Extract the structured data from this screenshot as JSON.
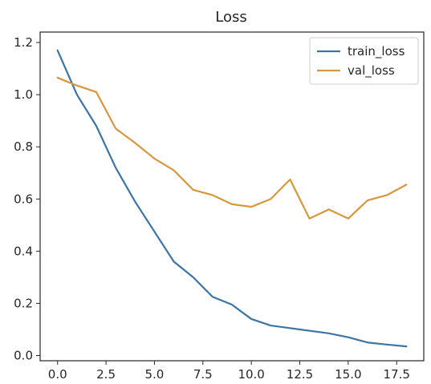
{
  "chart_data": {
    "type": "line",
    "title": "Loss",
    "xlabel": "",
    "ylabel": "",
    "xlim": [
      -0.9,
      18.9
    ],
    "ylim": [
      -0.02,
      1.24
    ],
    "xticks": [
      0.0,
      2.5,
      5.0,
      7.5,
      10.0,
      12.5,
      15.0,
      17.5
    ],
    "xtick_labels": [
      "0.0",
      "2.5",
      "5.0",
      "7.5",
      "10.0",
      "12.5",
      "15.0",
      "17.5"
    ],
    "yticks": [
      0.0,
      0.2,
      0.4,
      0.6,
      0.8,
      1.0,
      1.2
    ],
    "ytick_labels": [
      "0.0",
      "0.2",
      "0.4",
      "0.6",
      "0.8",
      "1.0",
      "1.2"
    ],
    "grid": false,
    "legend": "top-right",
    "x": [
      0,
      1,
      2,
      3,
      4,
      5,
      6,
      7,
      8,
      9,
      10,
      11,
      12,
      13,
      14,
      15,
      16,
      17,
      18
    ],
    "series": [
      {
        "name": "train_loss",
        "color": "#3b75a6",
        "values": [
          1.17,
          1.0,
          0.88,
          0.72,
          0.59,
          0.475,
          0.36,
          0.3,
          0.225,
          0.195,
          0.14,
          0.115,
          0.105,
          0.095,
          0.085,
          0.07,
          0.05,
          0.042,
          0.035
        ]
      },
      {
        "name": "val_loss",
        "color": "#d9963b",
        "values": [
          1.065,
          1.035,
          1.01,
          0.87,
          0.815,
          0.755,
          0.71,
          0.635,
          0.615,
          0.58,
          0.57,
          0.6,
          0.675,
          0.525,
          0.56,
          0.525,
          0.595,
          0.615,
          0.655
        ]
      }
    ]
  }
}
